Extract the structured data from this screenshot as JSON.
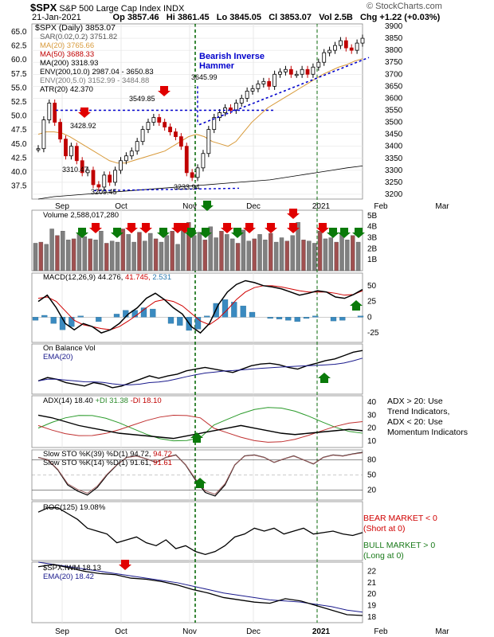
{
  "header": {
    "symbol": "$SPX",
    "name": "S&P 500 Large Cap Index",
    "exchange": "INDX",
    "date": "21-Jan-2021",
    "open": "Op 3857.46",
    "high": "Hi 3861.45",
    "low": "Lo 3845.05",
    "close": "Cl 3853.07",
    "volume": "Vol 2.5B",
    "change": "Chg +1.22 (+0.03%)",
    "watermark": "© StockCharts.com"
  },
  "legend": {
    "main": "$SPX (Daily) 3853.07",
    "sar": "SAR(0.02,0.2) 3751.82",
    "ma20": "MA(20) 3765.66",
    "ma50": "MA(50) 3688.33",
    "ma200": "MA(200) 3318.93",
    "env1": "ENV(200,10.0) 2987.04 - 3650.83",
    "env2": "ENV(200,5.0) 3152.99 - 3484.88",
    "atr": "ATR(20) 42.370",
    "volume": "Volume 2,588,017,280",
    "macd_label": "MACD(12,26,9)",
    "macd_v1": "44.276,",
    "macd_v2": "41.745,",
    "macd_v3": "2.531",
    "obv": "On Balance Vol",
    "obv_ema": "EMA(20)",
    "adx_label": "ADX(14) 18.40",
    "adx_pdi": "+DI 31.38",
    "adx_mdi": "-DI 18.10",
    "sto1_label": "Slow STO %K(39) %D(1) 94.72,",
    "sto1_v2": "94.72",
    "sto2_label": "Slow STO %K(14) %D(1) 91.61,",
    "sto2_v2": "91.61",
    "roc": "ROC(125) 19.08%",
    "ratio": "$SPX:IWM 18.13",
    "ratio_ema": "EMA(20) 18.42"
  },
  "annotations": {
    "bearish": "Bearish Inverse",
    "hammer": "Hammer",
    "adx_note1": "ADX > 20: Use",
    "adx_note2": "Trend Indicators,",
    "adx_note3": "ADX < 20: Use",
    "adx_note4": "Momentum Indicators",
    "bear1": "BEAR MARKET < 0",
    "bear2": "(Short at 0)",
    "bull1": "BULL MARKET > 0",
    "bull2": "(Long at 0)"
  },
  "chart_data": {
    "type": "line",
    "x_ticks": [
      "Sep",
      "Oct",
      "Nov",
      "Dec",
      "2021",
      "Feb",
      "Mar"
    ],
    "price_axis_ticks": [
      3200,
      3250,
      3300,
      3350,
      3400,
      3450,
      3500,
      3550,
      3600,
      3650,
      3700,
      3750,
      3800,
      3850,
      3900
    ],
    "atr_axis_ticks": [
      "65.0",
      "62.5",
      "60.0",
      "57.5",
      "55.0",
      "52.5",
      "50.0",
      "47.5",
      "45.0",
      "42.5",
      "40.0",
      "37.5"
    ],
    "price_labels": [
      "3428.92",
      "3310.47",
      "3209.45",
      "3549.85",
      "3233.94",
      "3645.99"
    ],
    "price_close": [
      3390,
      3510,
      3580,
      3500,
      3430,
      3360,
      3400,
      3340,
      3290,
      3300,
      3240,
      3230,
      3280,
      3250,
      3300,
      3340,
      3360,
      3380,
      3420,
      3470,
      3500,
      3520,
      3500,
      3480,
      3460,
      3440,
      3400,
      3290,
      3270,
      3310,
      3370,
      3470,
      3520,
      3540,
      3560,
      3550,
      3580,
      3600,
      3630,
      3640,
      3660,
      3670,
      3650,
      3700,
      3710,
      3720,
      3700,
      3700,
      3720,
      3700,
      3730,
      3750,
      3790,
      3800,
      3820,
      3840,
      3810,
      3800,
      3830,
      3850
    ],
    "ma20": [
      3450,
      3460,
      3460,
      3455,
      3440,
      3420,
      3400,
      3380,
      3360,
      3340,
      3330,
      3330,
      3340,
      3350,
      3360,
      3370,
      3380,
      3400,
      3420,
      3440,
      3450,
      3440,
      3420,
      3410,
      3400,
      3420,
      3460,
      3500,
      3530,
      3560,
      3580,
      3600,
      3620,
      3640,
      3660,
      3680,
      3700,
      3715,
      3730,
      3740,
      3755,
      3765
    ],
    "ma200": [
      3180,
      3190,
      3195,
      3200,
      3205,
      3210,
      3215,
      3220,
      3225,
      3230,
      3235,
      3240,
      3245,
      3250,
      3255,
      3260,
      3270,
      3280,
      3290,
      3300,
      3310,
      3318
    ],
    "volume": [
      2.5,
      2.6,
      2.4,
      3.8,
      3.2,
      3.6,
      2.8,
      2.9,
      3.4,
      3.1,
      2.9,
      2.8,
      3.6,
      2.5,
      2.7,
      2.6,
      3.8,
      3.3,
      2.6,
      3.5,
      2.7,
      3.4,
      2.9,
      2.6,
      3.2,
      3.6,
      2.4,
      4.1,
      4.4,
      3.2,
      3.5,
      2.8,
      4.0,
      3.0,
      3.6,
      3.3,
      2.9,
      2.5,
      3.7,
      2.7,
      2.9,
      3.3,
      2.8,
      3.4,
      2.6,
      3.0,
      2.7,
      3.2,
      4.4,
      2.8,
      2.7,
      2.5,
      3.6,
      2.9,
      3.0,
      2.6,
      3.4,
      2.8,
      3.2,
      2.6
    ],
    "volume_ticks": [
      "5B",
      "4B",
      "3B",
      "2B",
      "1B"
    ],
    "macd": [
      25,
      35,
      15,
      -10,
      -20,
      -10,
      -15,
      -25,
      -20,
      -10,
      5,
      15,
      30,
      38,
      28,
      15,
      5,
      -15,
      -25,
      -10,
      20,
      40,
      52,
      58,
      55,
      50,
      48,
      45,
      40,
      35,
      38,
      42,
      40,
      32,
      30,
      36,
      44
    ],
    "macd_signal": [
      30,
      32,
      25,
      10,
      -5,
      -12,
      -15,
      -18,
      -20,
      -15,
      -6,
      4,
      15,
      25,
      28,
      25,
      18,
      6,
      -6,
      -12,
      -2,
      12,
      28,
      40,
      47,
      50,
      50,
      48,
      45,
      42,
      40,
      40,
      40,
      38,
      35,
      36,
      42
    ],
    "macd_ticks": [
      "50",
      "25",
      "0",
      "-25"
    ],
    "obv": [
      10,
      20,
      15,
      5,
      0,
      -5,
      5,
      0,
      -10,
      -5,
      5,
      15,
      25,
      18,
      25,
      30,
      40,
      45,
      50,
      45,
      40,
      35,
      45,
      55,
      60,
      62,
      58,
      50,
      45,
      55,
      62,
      70,
      75,
      85,
      95,
      100
    ],
    "adx": [
      30,
      28,
      25,
      22,
      20,
      18,
      16,
      15,
      14,
      13,
      12,
      14,
      16,
      18,
      20,
      22,
      20,
      18,
      16,
      15,
      16,
      17,
      18,
      19,
      18
    ],
    "adx_ticks": [
      "40",
      "30",
      "20",
      "10"
    ],
    "sto_ticks": [
      "80",
      "50",
      "20"
    ],
    "roc": [
      33,
      36,
      36,
      32,
      28,
      22,
      20,
      18,
      12,
      14,
      16,
      12,
      10,
      14,
      8,
      10,
      6,
      4,
      6,
      10,
      16,
      18,
      22,
      20,
      22,
      18,
      20,
      22,
      18,
      19,
      20,
      18,
      17,
      19
    ],
    "ratio": [
      22.4,
      22.6,
      22.3,
      22.0,
      21.8,
      21.7,
      21.4,
      21.3,
      21.1,
      20.8,
      20.4,
      20.1,
      19.7,
      19.5,
      19.3,
      19.2,
      19.6,
      19.4,
      19.0,
      18.6,
      18.2,
      18.13
    ],
    "ratio_ema": [
      22.8,
      22.6,
      22.4,
      22.2,
      22.0,
      21.8,
      21.6,
      21.4,
      21.2,
      21.0,
      20.7,
      20.4,
      20.1,
      19.9,
      19.7,
      19.5,
      19.4,
      19.3,
      19.1,
      18.9,
      18.6,
      18.42
    ],
    "ratio_ticks": [
      "22",
      "21",
      "20",
      "19",
      "18"
    ],
    "colors": {
      "up": "#008000",
      "down": "#d00000",
      "ma20": "#d89a3a",
      "ma50": "#c00000",
      "ma200": "#000000",
      "trend": "#0000cc",
      "volbar": "#a05050",
      "grid": "#e5e5e5"
    }
  }
}
